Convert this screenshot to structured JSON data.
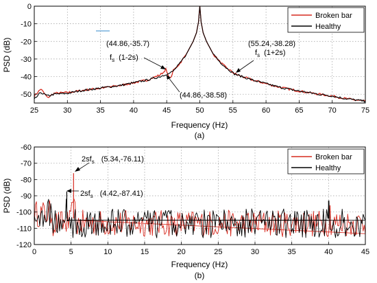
{
  "chart_data": [
    {
      "type": "line",
      "caption": "(a)",
      "xlabel": "Frequency (Hz)",
      "ylabel": "PSD (dB)",
      "xlim": [
        25,
        75
      ],
      "ylim": [
        -55,
        0
      ],
      "xticks": [
        25,
        30,
        35,
        40,
        45,
        50,
        55,
        60,
        65,
        70,
        75
      ],
      "yticks": [
        0,
        -10,
        -20,
        -30,
        -40,
        -50
      ],
      "grid": true,
      "legend_position": "top-right",
      "series": [
        {
          "name": "Broken bar",
          "color": "#d62a1f",
          "x": [
            25,
            26,
            27,
            28,
            30,
            32,
            34,
            36,
            38,
            40,
            42,
            43,
            44,
            44.5,
            44.86,
            45.2,
            45.6,
            46,
            47,
            48,
            49,
            49.5,
            49.8,
            50,
            50.2,
            50.5,
            51,
            52,
            53,
            54,
            55.24,
            56,
            58,
            60,
            62,
            64,
            66,
            68,
            70,
            72,
            74,
            75
          ],
          "y": [
            -51,
            -47,
            -52,
            -49.5,
            -49,
            -48,
            -47,
            -46,
            -45,
            -43.5,
            -42,
            -40.5,
            -39,
            -37.5,
            -35.7,
            -39.5,
            -41,
            -36.5,
            -32.5,
            -27,
            -20,
            -15,
            -9,
            0,
            -9,
            -15,
            -20,
            -27,
            -31.5,
            -35,
            -38.28,
            -39.5,
            -42,
            -44,
            -46,
            -47.5,
            -48.8,
            -50,
            -51,
            -52.5,
            -53.5,
            -54
          ]
        },
        {
          "name": "Healthy",
          "color": "#000000",
          "x": [
            25,
            26,
            27,
            28,
            30,
            32,
            34,
            36,
            38,
            40,
            42,
            43,
            44,
            44.5,
            44.86,
            45.2,
            45.6,
            46,
            47,
            48,
            49,
            49.5,
            49.8,
            50,
            50.2,
            50.5,
            51,
            52,
            53,
            54,
            55.24,
            56,
            58,
            60,
            62,
            64,
            66,
            68,
            70,
            72,
            74,
            75
          ],
          "y": [
            -53,
            -49,
            -51,
            -50,
            -49.5,
            -48,
            -47,
            -46,
            -45,
            -43.5,
            -42,
            -41,
            -40,
            -39.2,
            -38.58,
            -38.5,
            -37.8,
            -36.8,
            -32.5,
            -27,
            -20,
            -15,
            -9,
            0,
            -9,
            -15,
            -20,
            -27,
            -31.5,
            -35,
            -38.5,
            -39.5,
            -42,
            -44,
            -46,
            -47.5,
            -48.8,
            -50,
            -51,
            -52.5,
            -53.5,
            -54
          ]
        }
      ],
      "annotations": [
        {
          "id": "peak-upper",
          "text": "(44.86,-35.7)",
          "x": 44.86,
          "y": -35.7
        },
        {
          "id": "fs-left",
          "text": "f",
          "sub": "s",
          "suffix": "(1-2s)"
        },
        {
          "id": "peak-lower",
          "text": "(44.86,-38.58)",
          "x": 44.86,
          "y": -38.58
        },
        {
          "id": "peak-right",
          "text": "(55.24,-38.28)",
          "x": 55.24,
          "y": -38.28
        },
        {
          "id": "fs-right",
          "text": "f",
          "sub": "s",
          "suffix": "(1+2s)"
        }
      ]
    },
    {
      "type": "line",
      "caption": "(b)",
      "xlabel": "Frequency (Hz)",
      "ylabel": "PSD (dB)",
      "xlim": [
        0,
        45
      ],
      "ylim": [
        -120,
        -60
      ],
      "xticks": [
        0,
        5,
        10,
        15,
        20,
        25,
        30,
        35,
        40,
        45
      ],
      "yticks": [
        -60,
        -70,
        -80,
        -90,
        -100,
        -110,
        -120
      ],
      "grid": true,
      "legend_position": "top-right",
      "series": [
        {
          "name": "Broken bar",
          "color": "#d62a1f",
          "peaks": [
            {
              "x": 5.34,
              "y": -76.11
            },
            {
              "x": 40.2,
              "y": -96
            }
          ],
          "noise_range": [
            -118,
            -96
          ]
        },
        {
          "name": "Healthy",
          "color": "#000000",
          "peaks": [
            {
              "x": 4.42,
              "y": -87.41
            },
            {
              "x": 40.0,
              "y": -93
            }
          ],
          "noise_range": [
            -120,
            -96
          ]
        }
      ],
      "annotations": [
        {
          "id": "b-peak-upper",
          "text": "2sf",
          "sub": "s",
          "suffix": "(5.34,-76.11)",
          "x": 5.34,
          "y": -76.11
        },
        {
          "id": "b-peak-lower",
          "text": "2sf",
          "sub": "s",
          "suffix": "(4.42,-87.41)",
          "x": 4.42,
          "y": -87.41
        }
      ]
    }
  ]
}
